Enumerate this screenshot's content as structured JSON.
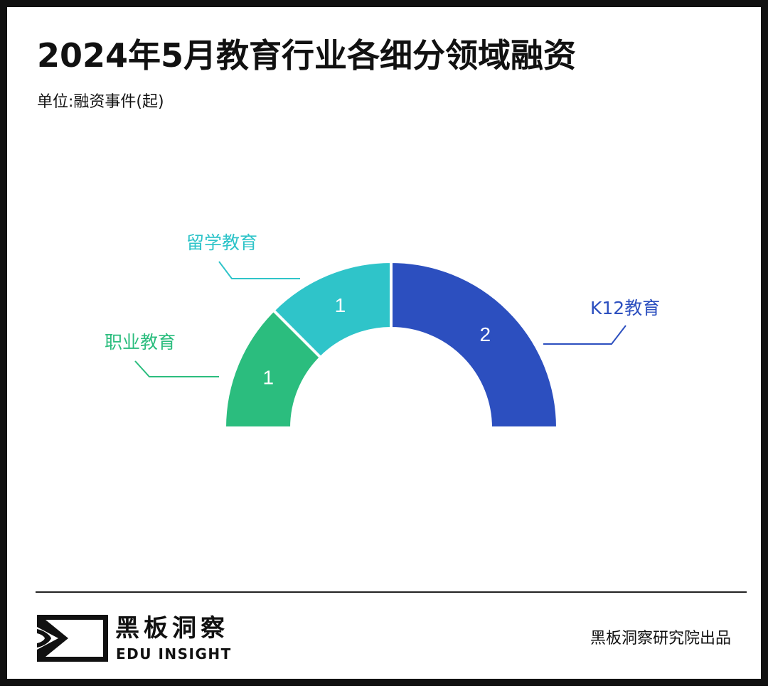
{
  "title": "2024年5月教育行业各细分领域融资",
  "subtitle": "单位:融资事件(起)",
  "chart_data": {
    "type": "pie",
    "style": "semi-donut",
    "title": "2024年5月教育行业各细分领域融资",
    "unit": "融资事件(起)",
    "categories": [
      "职业教育",
      "留学教育",
      "K12教育"
    ],
    "values": [
      1,
      1,
      2
    ],
    "colors": [
      "#2bbd7e",
      "#2fc4c9",
      "#2c4fbf"
    ]
  },
  "footer": {
    "brand_cn": "黑板洞察",
    "brand_en": "EDU INSIGHT",
    "credit": "黑板洞察研究院出品"
  }
}
